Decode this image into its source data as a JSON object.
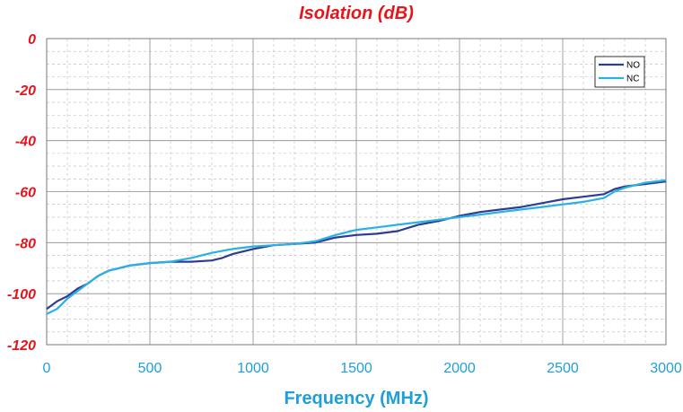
{
  "chart_data": {
    "type": "line",
    "title": "Isolation (dB)",
    "xlabel": "Frequency (MHz)",
    "ylabel": "",
    "xlim": [
      0,
      3000
    ],
    "ylim": [
      -120,
      0
    ],
    "xticks": [
      0,
      500,
      1000,
      1500,
      2000,
      2500,
      3000
    ],
    "yticks": [
      0,
      -20,
      -40,
      -60,
      -80,
      -100,
      -120
    ],
    "grid": true,
    "legend_position": "top-right",
    "series": [
      {
        "name": "NO",
        "color": "#2e3d8f",
        "x": [
          0,
          50,
          100,
          150,
          200,
          250,
          300,
          350,
          400,
          450,
          500,
          600,
          700,
          800,
          850,
          900,
          1000,
          1100,
          1200,
          1300,
          1400,
          1500,
          1600,
          1700,
          1800,
          1900,
          2000,
          2100,
          2200,
          2300,
          2400,
          2500,
          2600,
          2700,
          2750,
          2800,
          2900,
          3000
        ],
        "y": [
          -106,
          -103,
          -101,
          -98,
          -96,
          -93,
          -91,
          -90,
          -89,
          -88.5,
          -88,
          -87.5,
          -87.5,
          -87,
          -86,
          -84.5,
          -82.5,
          -81,
          -80.5,
          -80,
          -78,
          -77,
          -76.5,
          -75.5,
          -73,
          -71.5,
          -69.5,
          -68,
          -67,
          -66,
          -64.5,
          -63,
          -62,
          -61,
          -59,
          -58,
          -57,
          -56
        ]
      },
      {
        "name": "NC",
        "color": "#2bb0e6",
        "x": [
          0,
          50,
          100,
          150,
          200,
          250,
          300,
          350,
          400,
          450,
          500,
          600,
          700,
          800,
          900,
          1000,
          1100,
          1200,
          1300,
          1400,
          1500,
          1600,
          1700,
          1800,
          1900,
          2000,
          2100,
          2200,
          2300,
          2400,
          2500,
          2600,
          2700,
          2750,
          2800,
          2900,
          3000
        ],
        "y": [
          -108,
          -106,
          -102,
          -99,
          -96,
          -93,
          -91,
          -90,
          -89,
          -88.5,
          -88,
          -87.5,
          -86,
          -84,
          -82.5,
          -81.5,
          -81,
          -80.5,
          -79.5,
          -77,
          -75,
          -74,
          -73,
          -72,
          -71,
          -70,
          -69,
          -68,
          -67,
          -66,
          -65,
          -64,
          -62.5,
          -60,
          -58.5,
          -56.5,
          -55.5
        ]
      }
    ]
  }
}
